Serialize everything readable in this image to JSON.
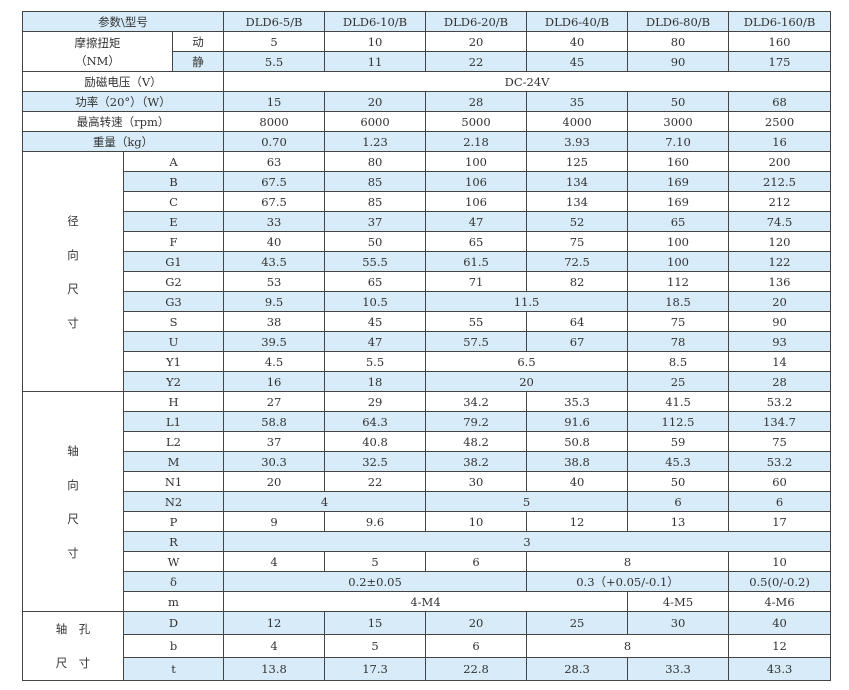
{
  "header": {
    "label": "参数\\型号",
    "models": [
      "DLD6-5/B",
      "DLD6-10/B",
      "DLD6-20/B",
      "DLD6-40/B",
      "DLD6-80/B",
      "DLD6-160/B"
    ]
  },
  "colors": {
    "shade": "#d7ebf8",
    "border": "#444444"
  },
  "torque": {
    "label": "摩擦扭矩",
    "unit": "（NM）",
    "rows": [
      {
        "sub": "动",
        "shaded": false,
        "cells": [
          [
            "5",
            1
          ],
          [
            "10",
            1
          ],
          [
            "20",
            1
          ],
          [
            "40",
            1
          ],
          [
            "80",
            1
          ],
          [
            "160",
            1
          ]
        ]
      },
      {
        "sub": "静",
        "shaded": true,
        "cells": [
          [
            "5.5",
            1
          ],
          [
            "11",
            1
          ],
          [
            "22",
            1
          ],
          [
            "45",
            1
          ],
          [
            "90",
            1
          ],
          [
            "175",
            1
          ]
        ]
      }
    ]
  },
  "general": [
    {
      "label": "励磁电压（V）",
      "shaded": false,
      "cells": [
        [
          "DC-24V",
          6
        ]
      ]
    },
    {
      "label": "功率（20°）（W）",
      "shaded": true,
      "cells": [
        [
          "15",
          1
        ],
        [
          "20",
          1
        ],
        [
          "28",
          1
        ],
        [
          "35",
          1
        ],
        [
          "50",
          1
        ],
        [
          "68",
          1
        ]
      ]
    },
    {
      "label": "最高转速（rpm）",
      "shaded": false,
      "cells": [
        [
          "8000",
          1
        ],
        [
          "6000",
          1
        ],
        [
          "5000",
          1
        ],
        [
          "4000",
          1
        ],
        [
          "3000",
          1
        ],
        [
          "2500",
          1
        ]
      ]
    },
    {
      "label": "重量（kg）",
      "shaded": true,
      "cells": [
        [
          "0.70",
          1
        ],
        [
          "1.23",
          1
        ],
        [
          "2.18",
          1
        ],
        [
          "3.93",
          1
        ],
        [
          "7.10",
          1
        ],
        [
          "16",
          1
        ]
      ]
    }
  ],
  "sections": [
    {
      "label": [
        "径",
        "向",
        "尺",
        "寸"
      ],
      "rows": [
        {
          "label": "A",
          "shaded": false,
          "cells": [
            [
              "63",
              1
            ],
            [
              "80",
              1
            ],
            [
              "100",
              1
            ],
            [
              "125",
              1
            ],
            [
              "160",
              1
            ],
            [
              "200",
              1
            ]
          ]
        },
        {
          "label": "B",
          "shaded": true,
          "cells": [
            [
              "67.5",
              1
            ],
            [
              "85",
              1
            ],
            [
              "106",
              1
            ],
            [
              "134",
              1
            ],
            [
              "169",
              1
            ],
            [
              "212.5",
              1
            ]
          ]
        },
        {
          "label": "C",
          "shaded": false,
          "cells": [
            [
              "67.5",
              1
            ],
            [
              "85",
              1
            ],
            [
              "106",
              1
            ],
            [
              "134",
              1
            ],
            [
              "169",
              1
            ],
            [
              "212",
              1
            ]
          ]
        },
        {
          "label": "E",
          "shaded": true,
          "cells": [
            [
              "33",
              1
            ],
            [
              "37",
              1
            ],
            [
              "47",
              1
            ],
            [
              "52",
              1
            ],
            [
              "65",
              1
            ],
            [
              "74.5",
              1
            ]
          ]
        },
        {
          "label": "F",
          "shaded": false,
          "cells": [
            [
              "40",
              1
            ],
            [
              "50",
              1
            ],
            [
              "65",
              1
            ],
            [
              "75",
              1
            ],
            [
              "100",
              1
            ],
            [
              "120",
              1
            ]
          ]
        },
        {
          "label": "G1",
          "shaded": true,
          "cells": [
            [
              "43.5",
              1
            ],
            [
              "55.5",
              1
            ],
            [
              "61.5",
              1
            ],
            [
              "72.5",
              1
            ],
            [
              "100",
              1
            ],
            [
              "122",
              1
            ]
          ]
        },
        {
          "label": "G2",
          "shaded": false,
          "cells": [
            [
              "53",
              1
            ],
            [
              "65",
              1
            ],
            [
              "71",
              1
            ],
            [
              "82",
              1
            ],
            [
              "112",
              1
            ],
            [
              "136",
              1
            ]
          ]
        },
        {
          "label": "G3",
          "shaded": true,
          "cells": [
            [
              "9.5",
              1
            ],
            [
              "10.5",
              1
            ],
            [
              "11.5",
              2
            ],
            [
              "18.5",
              1
            ],
            [
              "20",
              1
            ]
          ]
        },
        {
          "label": "S",
          "shaded": false,
          "cells": [
            [
              "38",
              1
            ],
            [
              "45",
              1
            ],
            [
              "55",
              1
            ],
            [
              "64",
              1
            ],
            [
              "75",
              1
            ],
            [
              "90",
              1
            ]
          ]
        },
        {
          "label": "U",
          "shaded": true,
          "cells": [
            [
              "39.5",
              1
            ],
            [
              "47",
              1
            ],
            [
              "57.5",
              1
            ],
            [
              "67",
              1
            ],
            [
              "78",
              1
            ],
            [
              "93",
              1
            ]
          ]
        },
        {
          "label": "Y1",
          "shaded": false,
          "cells": [
            [
              "4.5",
              1
            ],
            [
              "5.5",
              1
            ],
            [
              "6.5",
              2
            ],
            [
              "8.5",
              1
            ],
            [
              "14",
              1
            ]
          ]
        },
        {
          "label": "Y2",
          "shaded": true,
          "cells": [
            [
              "16",
              1
            ],
            [
              "18",
              1
            ],
            [
              "20",
              2
            ],
            [
              "25",
              1
            ],
            [
              "28",
              1
            ]
          ]
        }
      ]
    },
    {
      "label": [
        "轴",
        "向",
        "尺",
        "寸"
      ],
      "rows": [
        {
          "label": "H",
          "shaded": false,
          "cells": [
            [
              "27",
              1
            ],
            [
              "29",
              1
            ],
            [
              "34.2",
              1
            ],
            [
              "35.3",
              1
            ],
            [
              "41.5",
              1
            ],
            [
              "53.2",
              1
            ]
          ]
        },
        {
          "label": "L1",
          "shaded": true,
          "cells": [
            [
              "58.8",
              1
            ],
            [
              "64.3",
              1
            ],
            [
              "79.2",
              1
            ],
            [
              "91.6",
              1
            ],
            [
              "112.5",
              1
            ],
            [
              "134.7",
              1
            ]
          ]
        },
        {
          "label": "L2",
          "shaded": false,
          "cells": [
            [
              "37",
              1
            ],
            [
              "40.8",
              1
            ],
            [
              "48.2",
              1
            ],
            [
              "50.8",
              1
            ],
            [
              "59",
              1
            ],
            [
              "75",
              1
            ]
          ]
        },
        {
          "label": "M",
          "shaded": true,
          "cells": [
            [
              "30.3",
              1
            ],
            [
              "32.5",
              1
            ],
            [
              "38.2",
              1
            ],
            [
              "38.8",
              1
            ],
            [
              "45.3",
              1
            ],
            [
              "53.2",
              1
            ]
          ]
        },
        {
          "label": "N1",
          "shaded": false,
          "cells": [
            [
              "20",
              1
            ],
            [
              "22",
              1
            ],
            [
              "30",
              1
            ],
            [
              "40",
              1
            ],
            [
              "50",
              1
            ],
            [
              "60",
              1
            ]
          ]
        },
        {
          "label": "N2",
          "shaded": true,
          "cells": [
            [
              "4",
              2
            ],
            [
              "5",
              2
            ],
            [
              "6",
              1
            ],
            [
              "6",
              1
            ]
          ]
        },
        {
          "label": "P",
          "shaded": false,
          "cells": [
            [
              "9",
              1
            ],
            [
              "9.6",
              1
            ],
            [
              "10",
              1
            ],
            [
              "12",
              1
            ],
            [
              "13",
              1
            ],
            [
              "17",
              1
            ]
          ]
        },
        {
          "label": "R",
          "shaded": true,
          "cells": [
            [
              "3",
              6
            ]
          ]
        },
        {
          "label": "W",
          "shaded": false,
          "cells": [
            [
              "4",
              1
            ],
            [
              "5",
              1
            ],
            [
              "6",
              1
            ],
            [
              "8",
              2
            ],
            [
              "10",
              1
            ]
          ]
        },
        {
          "label": "δ",
          "shaded": true,
          "cells": [
            [
              "0.2±0.05",
              3
            ],
            [
              "0.3（+0.05/-0.1）",
              2
            ],
            [
              "0.5(0/-0.2)",
              1
            ]
          ]
        },
        {
          "label": "m",
          "shaded": false,
          "cells": [
            [
              "4-M4",
              4
            ],
            [
              "4-M5",
              1
            ],
            [
              "4-M6",
              1
            ]
          ]
        }
      ]
    },
    {
      "label": [
        "轴　孔",
        "尺　寸"
      ],
      "rows": [
        {
          "label": "D",
          "shaded": true,
          "cells": [
            [
              "12",
              1
            ],
            [
              "15",
              1
            ],
            [
              "20",
              1
            ],
            [
              "25",
              1
            ],
            [
              "30",
              1
            ],
            [
              "40",
              1
            ]
          ]
        },
        {
          "label": "b",
          "shaded": false,
          "cells": [
            [
              "4",
              1
            ],
            [
              "5",
              1
            ],
            [
              "6",
              1
            ],
            [
              "8",
              2
            ],
            [
              "12",
              1
            ]
          ]
        },
        {
          "label": "t",
          "shaded": true,
          "cells": [
            [
              "13.8",
              1
            ],
            [
              "17.3",
              1
            ],
            [
              "22.8",
              1
            ],
            [
              "28.3",
              1
            ],
            [
              "33.3",
              1
            ],
            [
              "43.3",
              1
            ]
          ]
        }
      ]
    }
  ]
}
